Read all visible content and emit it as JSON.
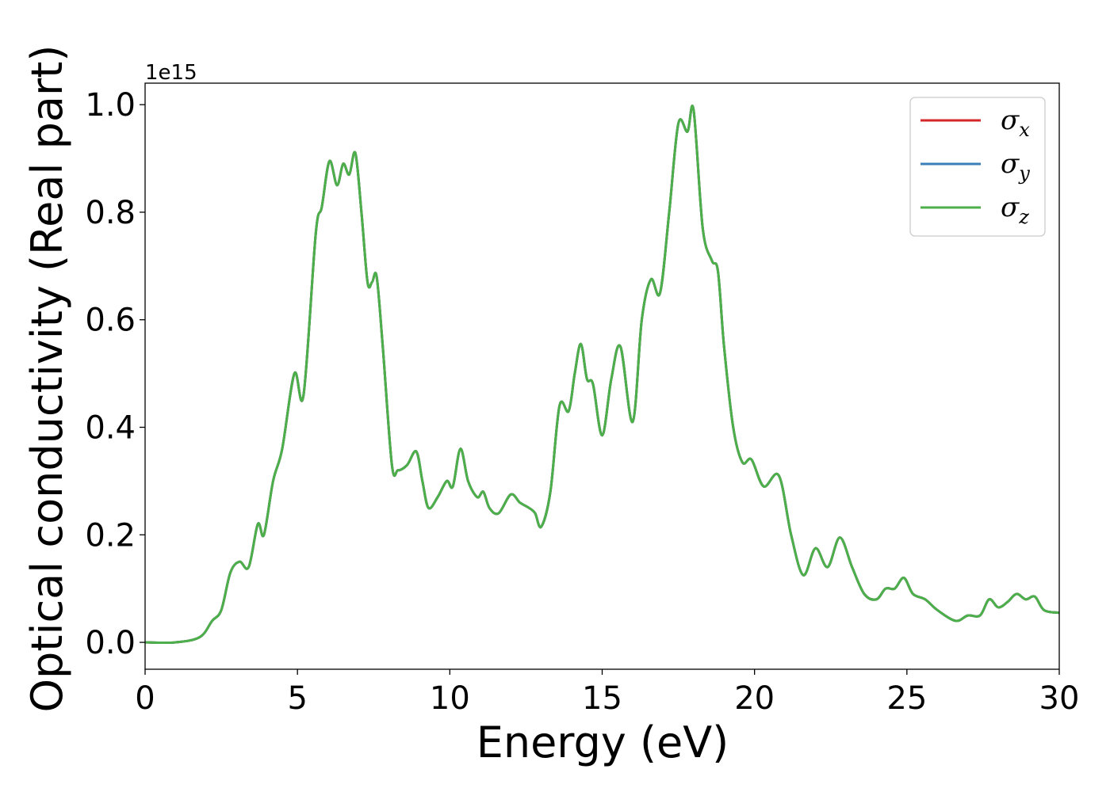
{
  "chart_data": {
    "type": "line",
    "xlabel": "Energy (eV)",
    "ylabel": "Optical conductivity (Real part)",
    "y_offset_label": "1e15",
    "xlim": [
      0,
      30
    ],
    "ylim": [
      -0.05,
      1.04
    ],
    "xticks": [
      "0",
      "5",
      "10",
      "15",
      "20",
      "25",
      "30"
    ],
    "yticks": [
      "0.0",
      "0.2",
      "0.4",
      "0.6",
      "0.8",
      "1.0"
    ],
    "grid": false,
    "legend_position": "top-right",
    "legend": [
      {
        "symbol": "σ",
        "sub": "x",
        "color": "#d62728"
      },
      {
        "symbol": "σ",
        "sub": "y",
        "color": "#3a7fb8"
      },
      {
        "symbol": "σ",
        "sub": "z",
        "color": "#4daf4a"
      }
    ],
    "x": [
      0,
      1,
      1.8,
      2.2,
      2.5,
      2.8,
      3.1,
      3.4,
      3.7,
      3.9,
      4.2,
      4.5,
      4.9,
      5.2,
      5.6,
      5.8,
      6.05,
      6.3,
      6.5,
      6.7,
      6.9,
      7.1,
      7.3,
      7.45,
      7.6,
      7.8,
      8.1,
      8.3,
      8.6,
      8.9,
      9.1,
      9.3,
      9.6,
      9.9,
      10.1,
      10.35,
      10.6,
      10.9,
      11.1,
      11.3,
      11.6,
      12.0,
      12.3,
      12.6,
      12.8,
      13.0,
      13.3,
      13.6,
      13.9,
      14.1,
      14.3,
      14.5,
      14.7,
      15.0,
      15.3,
      15.6,
      16.0,
      16.3,
      16.6,
      16.9,
      17.2,
      17.5,
      17.8,
      18.0,
      18.3,
      18.6,
      18.8,
      19.0,
      19.3,
      19.6,
      19.9,
      20.3,
      20.8,
      21.2,
      21.6,
      22.0,
      22.4,
      22.8,
      23.2,
      23.6,
      24.0,
      24.3,
      24.6,
      24.9,
      25.2,
      25.6,
      26.0,
      26.6,
      27.0,
      27.4,
      27.7,
      28.0,
      28.3,
      28.6,
      28.9,
      29.2,
      29.5,
      30.0
    ],
    "series": [
      {
        "values": [
          0.0,
          0.0,
          0.01,
          0.04,
          0.06,
          0.13,
          0.15,
          0.14,
          0.22,
          0.2,
          0.3,
          0.36,
          0.5,
          0.46,
          0.76,
          0.81,
          0.895,
          0.85,
          0.89,
          0.87,
          0.91,
          0.8,
          0.67,
          0.67,
          0.68,
          0.55,
          0.33,
          0.32,
          0.33,
          0.355,
          0.3,
          0.25,
          0.27,
          0.3,
          0.29,
          0.36,
          0.3,
          0.27,
          0.28,
          0.25,
          0.24,
          0.275,
          0.26,
          0.25,
          0.24,
          0.215,
          0.28,
          0.44,
          0.43,
          0.5,
          0.555,
          0.49,
          0.48,
          0.385,
          0.49,
          0.55,
          0.41,
          0.6,
          0.675,
          0.65,
          0.8,
          0.965,
          0.95,
          0.99,
          0.77,
          0.71,
          0.69,
          0.55,
          0.4,
          0.335,
          0.34,
          0.29,
          0.31,
          0.2,
          0.125,
          0.175,
          0.14,
          0.195,
          0.14,
          0.09,
          0.08,
          0.1,
          0.1,
          0.12,
          0.09,
          0.08,
          0.06,
          0.04,
          0.05,
          0.05,
          0.08,
          0.065,
          0.075,
          0.09,
          0.08,
          0.085,
          0.06,
          0.055
        ]
      },
      {
        "values": [
          0.0,
          0.0,
          0.01,
          0.04,
          0.06,
          0.13,
          0.15,
          0.14,
          0.22,
          0.2,
          0.3,
          0.36,
          0.5,
          0.46,
          0.76,
          0.81,
          0.895,
          0.85,
          0.89,
          0.87,
          0.91,
          0.8,
          0.67,
          0.67,
          0.68,
          0.55,
          0.33,
          0.32,
          0.33,
          0.355,
          0.3,
          0.25,
          0.27,
          0.3,
          0.29,
          0.36,
          0.3,
          0.27,
          0.28,
          0.25,
          0.24,
          0.275,
          0.26,
          0.25,
          0.24,
          0.215,
          0.28,
          0.44,
          0.43,
          0.5,
          0.555,
          0.49,
          0.48,
          0.385,
          0.49,
          0.55,
          0.41,
          0.6,
          0.675,
          0.65,
          0.8,
          0.965,
          0.95,
          0.99,
          0.77,
          0.71,
          0.69,
          0.55,
          0.4,
          0.335,
          0.34,
          0.29,
          0.31,
          0.2,
          0.125,
          0.175,
          0.14,
          0.195,
          0.14,
          0.09,
          0.08,
          0.1,
          0.1,
          0.12,
          0.09,
          0.08,
          0.06,
          0.04,
          0.05,
          0.05,
          0.08,
          0.065,
          0.075,
          0.09,
          0.08,
          0.085,
          0.06,
          0.055
        ]
      },
      {
        "values": [
          0.0,
          0.0,
          0.01,
          0.04,
          0.06,
          0.13,
          0.15,
          0.14,
          0.22,
          0.2,
          0.3,
          0.36,
          0.5,
          0.46,
          0.76,
          0.81,
          0.895,
          0.85,
          0.89,
          0.87,
          0.91,
          0.8,
          0.67,
          0.67,
          0.68,
          0.55,
          0.33,
          0.32,
          0.33,
          0.355,
          0.3,
          0.25,
          0.27,
          0.3,
          0.29,
          0.36,
          0.3,
          0.27,
          0.28,
          0.25,
          0.24,
          0.275,
          0.26,
          0.25,
          0.24,
          0.215,
          0.28,
          0.44,
          0.43,
          0.5,
          0.555,
          0.49,
          0.48,
          0.385,
          0.49,
          0.55,
          0.41,
          0.6,
          0.675,
          0.65,
          0.8,
          0.965,
          0.95,
          0.99,
          0.77,
          0.71,
          0.69,
          0.55,
          0.4,
          0.335,
          0.34,
          0.29,
          0.31,
          0.2,
          0.125,
          0.175,
          0.14,
          0.195,
          0.14,
          0.09,
          0.08,
          0.1,
          0.1,
          0.12,
          0.09,
          0.08,
          0.06,
          0.04,
          0.05,
          0.05,
          0.08,
          0.065,
          0.075,
          0.09,
          0.08,
          0.085,
          0.06,
          0.055
        ]
      }
    ]
  }
}
